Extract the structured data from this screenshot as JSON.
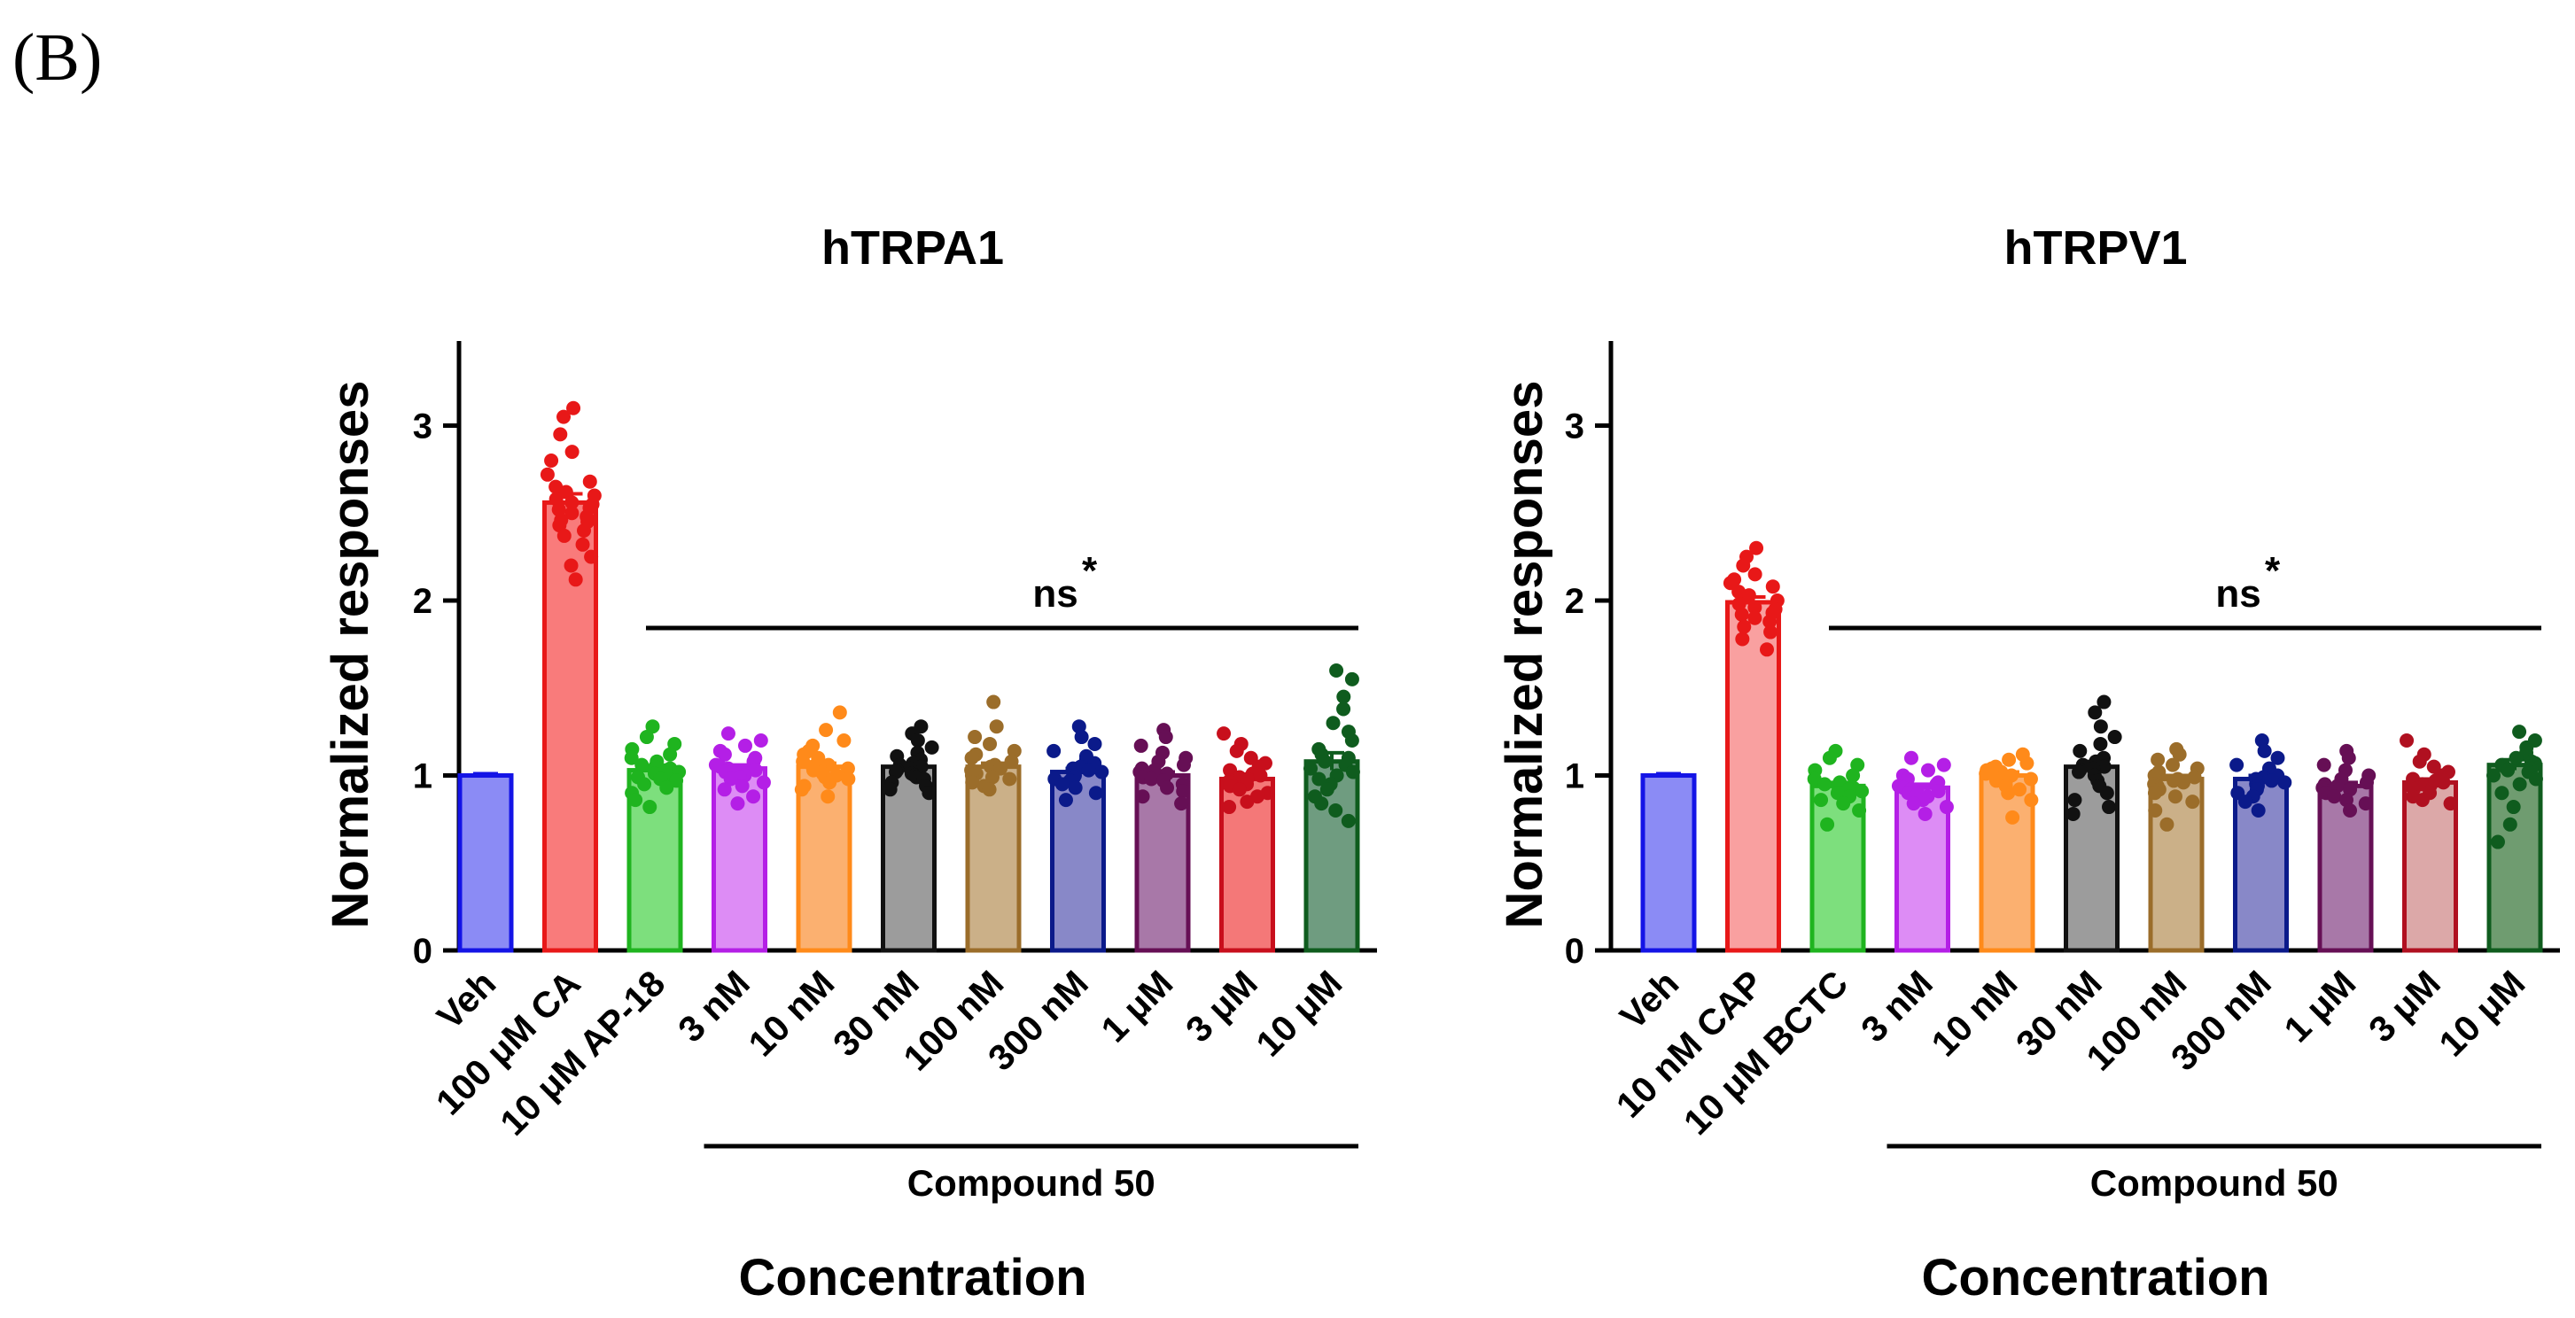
{
  "panel_label": "(B)",
  "chart_data": [
    {
      "type": "bar",
      "title": "hTRPA1",
      "ylabel": "Normalized responses",
      "xlabel": "Concentration",
      "ylim": [
        0,
        3.5
      ],
      "yticks": [
        0,
        1,
        2,
        3
      ],
      "categories": [
        "Veh",
        "100 μM CA",
        "10 μM AP-18",
        "3 nM",
        "10 nM",
        "30 nM",
        "100 nM",
        "300 nM",
        "1 μM",
        "3 μM",
        "10 μM"
      ],
      "values": [
        1.0,
        2.56,
        1.03,
        1.04,
        1.05,
        1.05,
        1.05,
        1.02,
        1.0,
        0.98,
        1.08
      ],
      "errors": [
        0.01,
        0.05,
        0.02,
        0.02,
        0.02,
        0.02,
        0.02,
        0.02,
        0.02,
        0.02,
        0.05
      ],
      "points": [
        [
          1.0
        ],
        [
          3.1,
          3.05,
          2.95,
          2.85,
          2.8,
          2.72,
          2.68,
          2.65,
          2.62,
          2.6,
          2.58,
          2.56,
          2.55,
          2.53,
          2.52,
          2.5,
          2.48,
          2.46,
          2.45,
          2.43,
          2.4,
          2.37,
          2.32,
          2.25,
          2.2,
          2.12
        ],
        [
          1.28,
          1.22,
          1.18,
          1.15,
          1.12,
          1.1,
          1.08,
          1.06,
          1.05,
          1.04,
          1.03,
          1.02,
          1.01,
          1.0,
          0.99,
          0.98,
          0.97,
          0.95,
          0.93,
          0.9,
          0.86,
          0.82
        ],
        [
          1.24,
          1.2,
          1.17,
          1.14,
          1.12,
          1.1,
          1.08,
          1.06,
          1.05,
          1.04,
          1.03,
          1.02,
          1.01,
          1.0,
          0.99,
          0.98,
          0.96,
          0.94,
          0.92,
          0.88,
          0.84
        ],
        [
          1.36,
          1.26,
          1.2,
          1.17,
          1.14,
          1.12,
          1.1,
          1.08,
          1.06,
          1.05,
          1.04,
          1.03,
          1.02,
          1.01,
          1.0,
          0.99,
          0.98,
          0.96,
          0.94,
          0.92,
          0.88
        ],
        [
          1.28,
          1.24,
          1.2,
          1.16,
          1.13,
          1.11,
          1.09,
          1.07,
          1.06,
          1.05,
          1.04,
          1.03,
          1.02,
          1.01,
          1.0,
          0.99,
          0.98,
          0.96,
          0.94,
          0.92,
          0.9
        ],
        [
          1.42,
          1.28,
          1.22,
          1.18,
          1.14,
          1.12,
          1.1,
          1.08,
          1.06,
          1.05,
          1.04,
          1.03,
          1.02,
          1.01,
          1.0,
          0.99,
          0.98,
          0.96,
          0.94,
          0.92
        ],
        [
          1.28,
          1.22,
          1.18,
          1.14,
          1.11,
          1.09,
          1.07,
          1.05,
          1.04,
          1.03,
          1.02,
          1.01,
          1.0,
          0.99,
          0.98,
          0.97,
          0.95,
          0.93,
          0.9,
          0.86
        ],
        [
          1.26,
          1.22,
          1.17,
          1.13,
          1.1,
          1.08,
          1.06,
          1.04,
          1.03,
          1.02,
          1.01,
          1.0,
          0.99,
          0.98,
          0.97,
          0.95,
          0.93,
          0.91,
          0.88,
          0.84
        ],
        [
          1.24,
          1.18,
          1.14,
          1.1,
          1.07,
          1.05,
          1.03,
          1.01,
          1.0,
          0.99,
          0.98,
          0.97,
          0.96,
          0.95,
          0.94,
          0.92,
          0.9,
          0.88,
          0.85,
          0.82
        ],
        [
          1.6,
          1.55,
          1.45,
          1.38,
          1.3,
          1.25,
          1.2,
          1.15,
          1.12,
          1.1,
          1.08,
          1.06,
          1.04,
          1.02,
          1.0,
          0.98,
          0.95,
          0.92,
          0.88,
          0.84,
          0.8,
          0.74
        ]
      ],
      "colors": {
        "fill": [
          "#8b8bf5",
          "#f97b7b",
          "#7ddf7d",
          "#dd8cf5",
          "#fbb070",
          "#9c9c9c",
          "#cbb088",
          "#8888c8",
          "#a878a8",
          "#f47878",
          "#6f9c80"
        ],
        "edge": [
          "#1414e6",
          "#e81818",
          "#1fb41f",
          "#b41fe6",
          "#ff8a1a",
          "#111111",
          "#9b6d2a",
          "#0b1a8a",
          "#660f55",
          "#c80f1c",
          "#0f5c1e"
        ]
      },
      "group_bracket_label": "Compound 50",
      "significance": {
        "label": "ns",
        "superscript": "*"
      }
    },
    {
      "type": "bar",
      "title": "hTRPV1",
      "ylabel": "Normalized responses",
      "xlabel": "Concentration",
      "ylim": [
        0,
        3.5
      ],
      "yticks": [
        0,
        1,
        2,
        3
      ],
      "categories": [
        "Veh",
        "10 nM CAP",
        "10 μM BCTC",
        "3 nM",
        "10 nM",
        "30 nM",
        "100 nM",
        "300 nM",
        "1 μM",
        "3 μM",
        "10 μM"
      ],
      "values": [
        1.0,
        1.99,
        0.94,
        0.93,
        1.0,
        1.05,
        0.98,
        0.98,
        0.94,
        0.96,
        1.06
      ],
      "errors": [
        0.01,
        0.03,
        0.02,
        0.02,
        0.02,
        0.03,
        0.02,
        0.02,
        0.02,
        0.02,
        0.03
      ],
      "points": [
        [
          1.0
        ],
        [
          2.3,
          2.25,
          2.2,
          2.15,
          2.12,
          2.1,
          2.08,
          2.05,
          2.03,
          2.0,
          1.98,
          1.96,
          1.95,
          1.93,
          1.92,
          1.9,
          1.88,
          1.85,
          1.82,
          1.78,
          1.72
        ],
        [
          1.14,
          1.1,
          1.06,
          1.03,
          1.0,
          0.98,
          0.96,
          0.95,
          0.94,
          0.93,
          0.92,
          0.91,
          0.9,
          0.88,
          0.86,
          0.84,
          0.8,
          0.72
        ],
        [
          1.1,
          1.06,
          1.03,
          1.0,
          0.98,
          0.96,
          0.95,
          0.94,
          0.93,
          0.92,
          0.91,
          0.9,
          0.89,
          0.88,
          0.86,
          0.84,
          0.82,
          0.78
        ],
        [
          1.12,
          1.09,
          1.07,
          1.05,
          1.04,
          1.03,
          1.02,
          1.01,
          1.0,
          0.99,
          0.98,
          0.97,
          0.96,
          0.94,
          0.92,
          0.9,
          0.86,
          0.76
        ],
        [
          1.42,
          1.36,
          1.28,
          1.22,
          1.18,
          1.14,
          1.1,
          1.08,
          1.06,
          1.05,
          1.04,
          1.03,
          1.02,
          1.0,
          0.97,
          0.94,
          0.9,
          0.86,
          0.82,
          0.78
        ],
        [
          1.15,
          1.12,
          1.09,
          1.06,
          1.04,
          1.02,
          1.0,
          0.99,
          0.98,
          0.97,
          0.96,
          0.95,
          0.94,
          0.92,
          0.9,
          0.88,
          0.85,
          0.8,
          0.72
        ],
        [
          1.2,
          1.14,
          1.1,
          1.06,
          1.04,
          1.02,
          1.0,
          0.99,
          0.98,
          0.97,
          0.96,
          0.95,
          0.94,
          0.92,
          0.9,
          0.88,
          0.85,
          0.8
        ],
        [
          1.14,
          1.1,
          1.06,
          1.03,
          1.0,
          0.98,
          0.96,
          0.95,
          0.94,
          0.93,
          0.92,
          0.91,
          0.9,
          0.88,
          0.86,
          0.84,
          0.8
        ],
        [
          1.2,
          1.12,
          1.08,
          1.05,
          1.02,
          1.0,
          0.98,
          0.97,
          0.96,
          0.95,
          0.94,
          0.93,
          0.92,
          0.9,
          0.88,
          0.86,
          0.84
        ],
        [
          1.25,
          1.2,
          1.16,
          1.13,
          1.1,
          1.08,
          1.07,
          1.06,
          1.05,
          1.04,
          1.03,
          1.02,
          1.0,
          0.98,
          0.95,
          0.9,
          0.82,
          0.72,
          0.62
        ]
      ],
      "colors": {
        "fill": [
          "#8b8bf5",
          "#f9a0a0",
          "#7ddf7d",
          "#dd8cf5",
          "#fbb070",
          "#9c9c9c",
          "#cbb088",
          "#8888c8",
          "#a878a8",
          "#dca8a8",
          "#6f9c70"
        ],
        "edge": [
          "#1414e6",
          "#e81818",
          "#1fb41f",
          "#b41fe6",
          "#ff8a1a",
          "#111111",
          "#9b6d2a",
          "#0b1a8a",
          "#660f55",
          "#b01020",
          "#0f5c1e"
        ]
      },
      "group_bracket_label": "Compound 50",
      "significance": {
        "label": "ns",
        "superscript": "*"
      }
    }
  ]
}
